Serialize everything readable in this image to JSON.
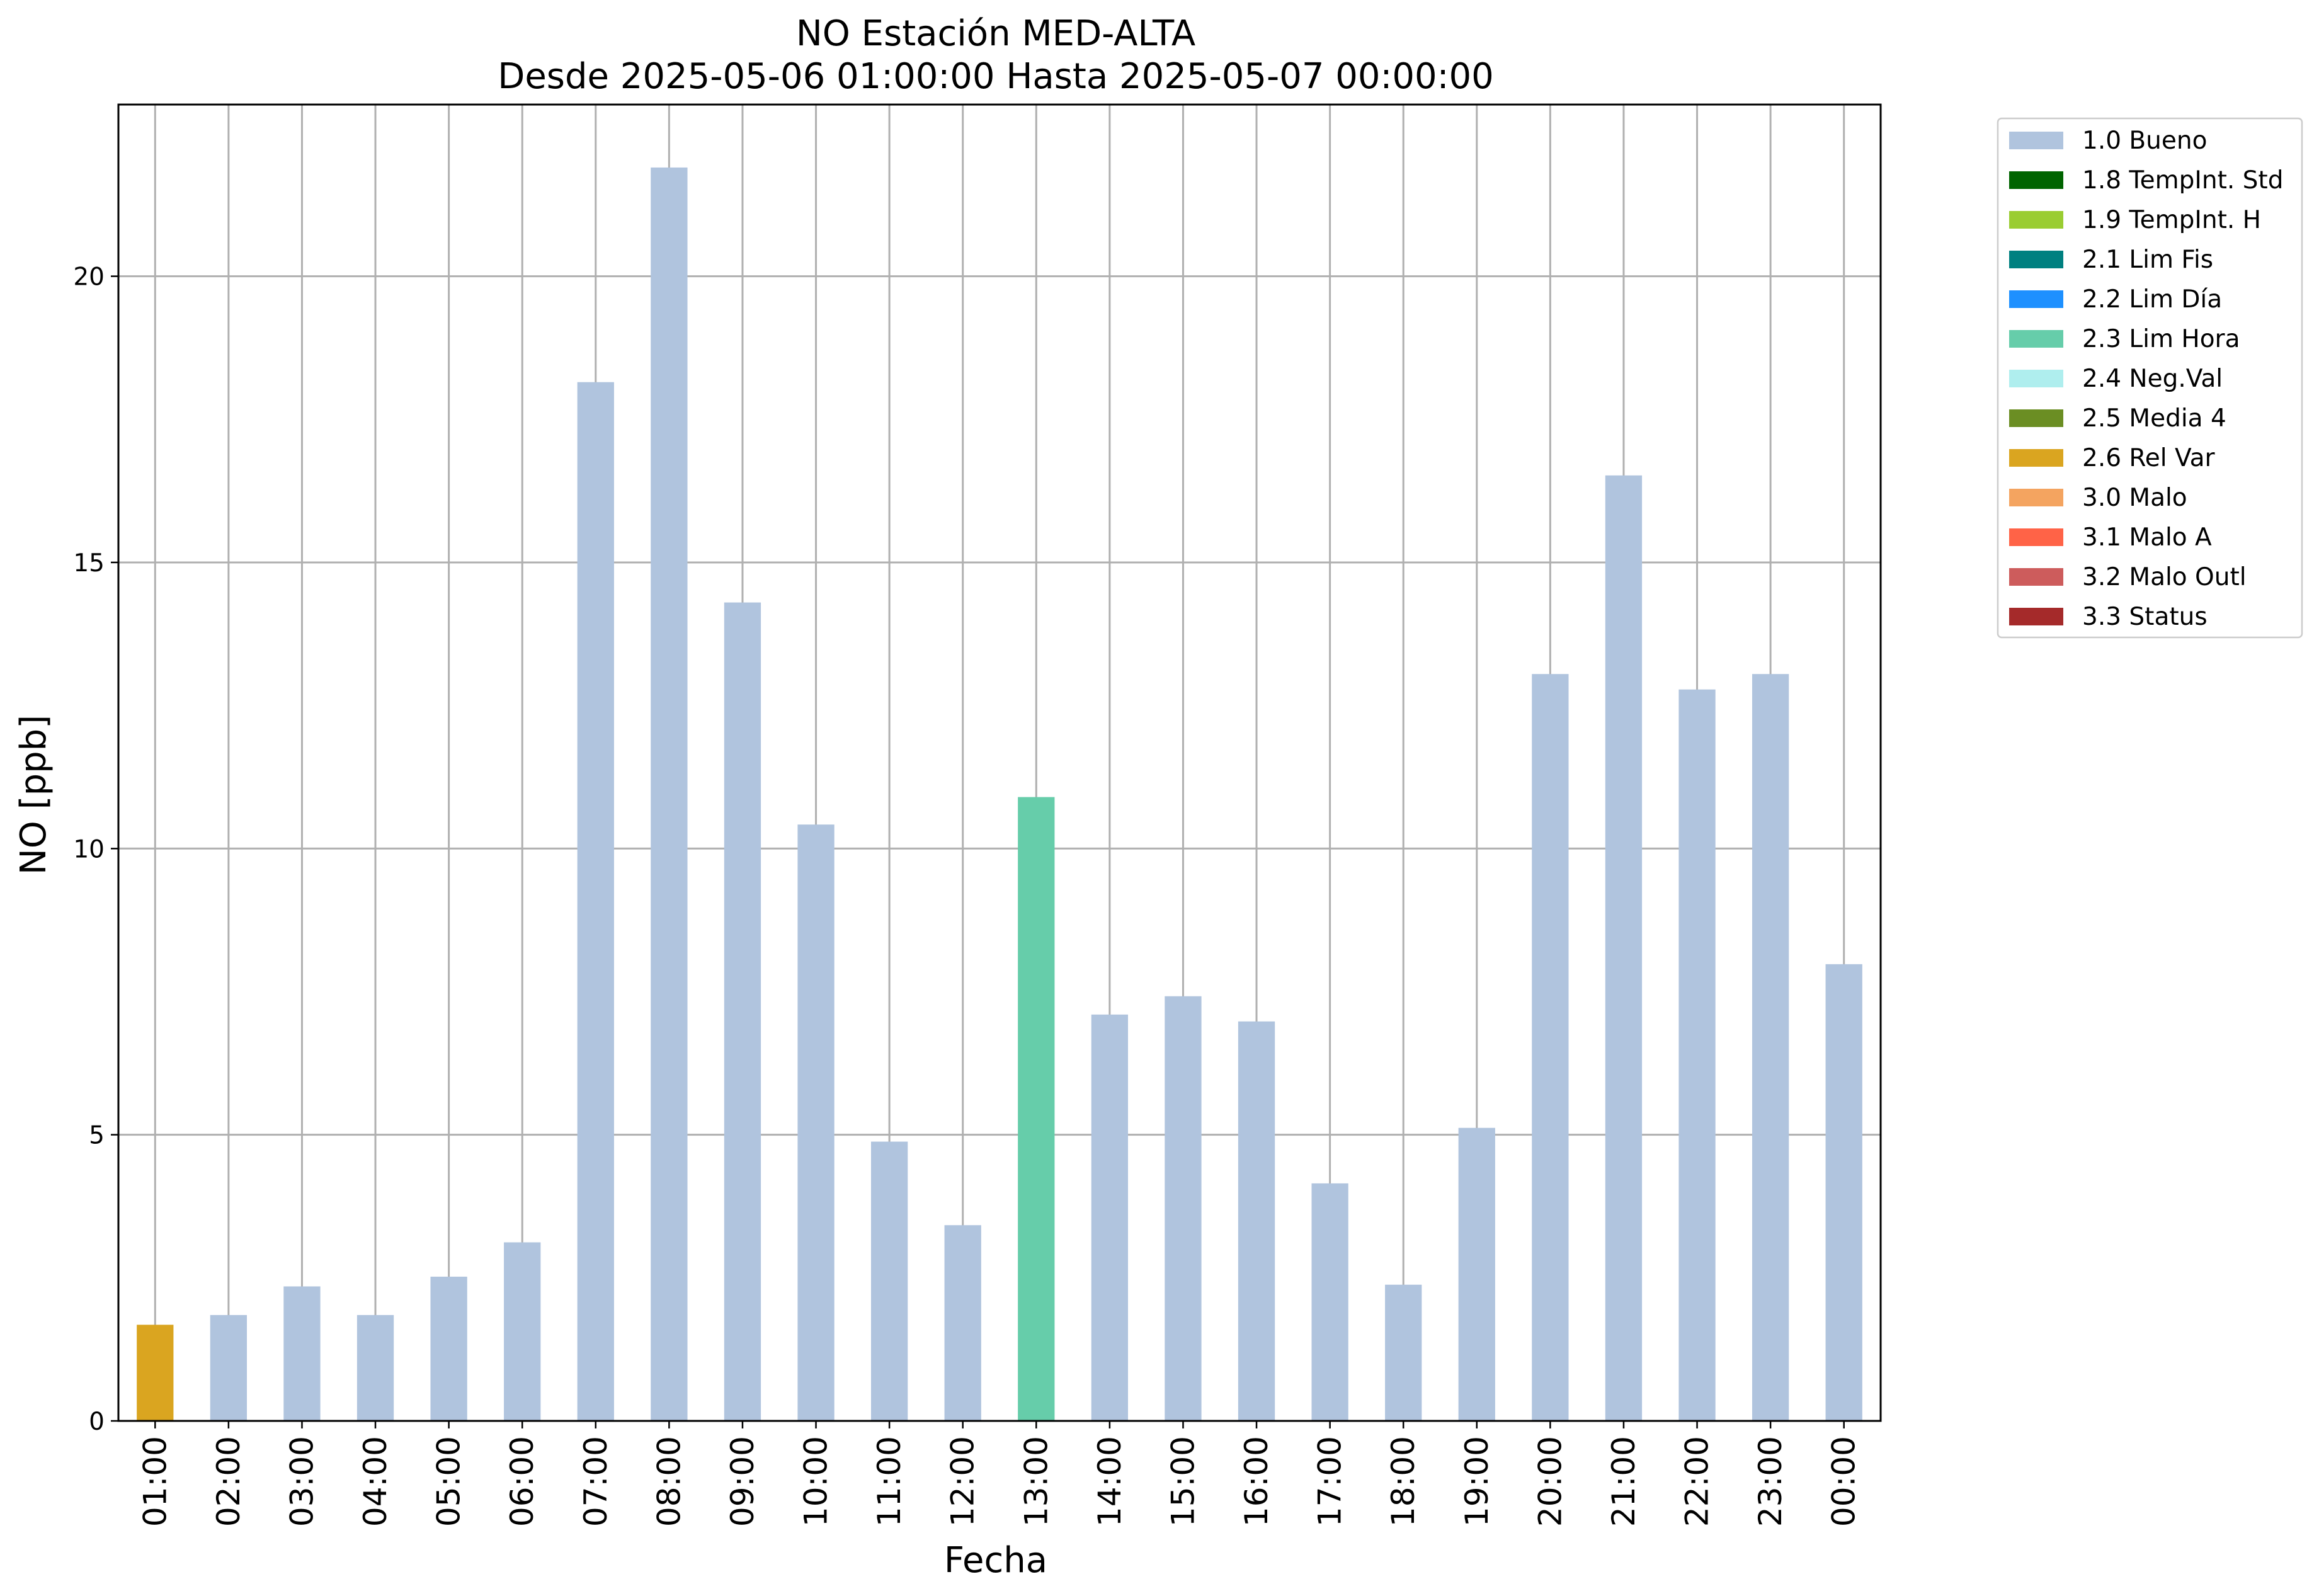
{
  "chart_data": {
    "type": "bar",
    "title": "NO Estación MED-ALTA",
    "subtitle": "Desde 2025-05-06 01:00:00 Hasta 2025-05-07 00:00:00",
    "xlabel": "Fecha",
    "ylabel": "NO [ppb]",
    "ylim": [
      0,
      23
    ],
    "yticks": [
      0,
      5,
      10,
      15,
      20
    ],
    "grid": true,
    "legend_position": "outside-top-right",
    "categories": [
      "01:00",
      "02:00",
      "03:00",
      "04:00",
      "05:00",
      "06:00",
      "07:00",
      "08:00",
      "09:00",
      "10:00",
      "11:00",
      "12:00",
      "13:00",
      "14:00",
      "15:00",
      "16:00",
      "17:00",
      "18:00",
      "19:00",
      "20:00",
      "21:00",
      "22:00",
      "23:00",
      "00:00"
    ],
    "values": [
      1.68,
      1.85,
      2.35,
      1.85,
      2.52,
      3.12,
      18.15,
      21.9,
      14.3,
      10.42,
      4.88,
      3.42,
      10.9,
      7.1,
      7.42,
      6.98,
      4.15,
      2.38,
      5.12,
      13.05,
      16.52,
      12.78,
      13.05,
      7.98
    ],
    "flags": [
      "2.6 Rel Var",
      "1.0 Bueno",
      "1.0 Bueno",
      "1.0 Bueno",
      "1.0 Bueno",
      "1.0 Bueno",
      "1.0 Bueno",
      "1.0 Bueno",
      "1.0 Bueno",
      "1.0 Bueno",
      "1.0 Bueno",
      "1.0 Bueno",
      "2.3 Lim Hora",
      "1.0 Bueno",
      "1.0 Bueno",
      "1.0 Bueno",
      "1.0 Bueno",
      "1.0 Bueno",
      "1.0 Bueno",
      "1.0 Bueno",
      "1.0 Bueno",
      "1.0 Bueno",
      "1.0 Bueno",
      "1.0 Bueno"
    ],
    "legend": [
      {
        "label": "1.0 Bueno",
        "color": "#b0c4de"
      },
      {
        "label": "1.8 TempInt. Std",
        "color": "#006400"
      },
      {
        "label": "1.9 TempInt. H",
        "color": "#9acd32"
      },
      {
        "label": "2.1 Lim Fis",
        "color": "#008080"
      },
      {
        "label": "2.2 Lim Día",
        "color": "#1e90ff"
      },
      {
        "label": "2.3 Lim Hora",
        "color": "#66cdaa"
      },
      {
        "label": "2.4 Neg.Val",
        "color": "#afeeee"
      },
      {
        "label": "2.5 Media 4",
        "color": "#6b8e23"
      },
      {
        "label": "2.6 Rel Var",
        "color": "#daa520"
      },
      {
        "label": "3.0 Malo",
        "color": "#f4a460"
      },
      {
        "label": "3.1 Malo A",
        "color": "#ff6347"
      },
      {
        "label": "3.2 Malo Outl",
        "color": "#cd5c5c"
      },
      {
        "label": "3.3 Status",
        "color": "#a52a2a"
      }
    ]
  }
}
